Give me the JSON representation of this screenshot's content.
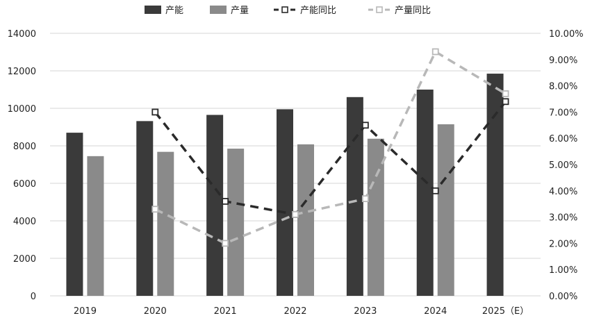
{
  "chart_data": {
    "type": "bar",
    "categories": [
      "2019",
      "2020",
      "2021",
      "2022",
      "2023",
      "2024",
      "2025（E）"
    ],
    "series": [
      {
        "name": "产能",
        "kind": "bar",
        "axis": "left",
        "color": "#3a3a3a",
        "values": [
          8700,
          9320,
          9650,
          9950,
          10600,
          11000,
          11850
        ]
      },
      {
        "name": "产量",
        "kind": "bar",
        "axis": "left",
        "color": "#8a8a8a",
        "values": [
          7450,
          7680,
          7850,
          8080,
          8380,
          9150,
          null
        ]
      },
      {
        "name": "产能同比",
        "kind": "line",
        "axis": "right",
        "color": "#2a2a2a",
        "dash": "dashed",
        "marker": "square",
        "values": [
          null,
          7.0,
          3.6,
          3.1,
          6.5,
          4.0,
          7.4
        ]
      },
      {
        "name": "产量同比",
        "kind": "line",
        "axis": "right",
        "color": "#b8b8b8",
        "dash": "dashed",
        "marker": "square",
        "values": [
          null,
          3.3,
          2.0,
          3.1,
          3.7,
          9.3,
          7.7
        ]
      }
    ],
    "y_left": {
      "min": 0,
      "max": 14000,
      "ticks": [
        "0",
        "2000",
        "4000",
        "6000",
        "8000",
        "10000",
        "12000",
        "14000"
      ]
    },
    "y_right": {
      "min": 0,
      "max": 10,
      "ticks": [
        "0.00%",
        "1.00%",
        "2.00%",
        "3.00%",
        "4.00%",
        "5.00%",
        "6.00%",
        "7.00%",
        "8.00%",
        "9.00%",
        "10.00%"
      ]
    },
    "grid": true,
    "legend_position": "top"
  }
}
